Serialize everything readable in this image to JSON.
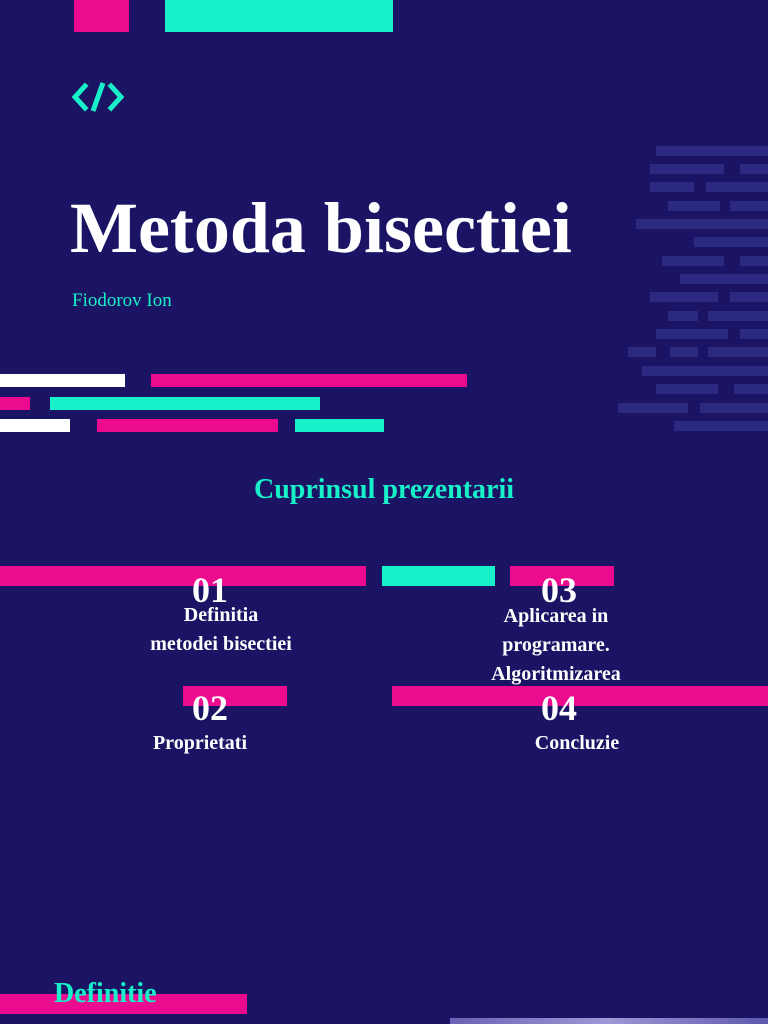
{
  "slide": {
    "title": "Metoda bisectiei",
    "author": "Fiodorov Ion"
  },
  "toc": {
    "heading": "Cuprinsul prezentarii",
    "items": [
      {
        "num": "01",
        "label_lines": [
          "Definitia",
          "metodei bisectiei"
        ]
      },
      {
        "num": "02",
        "label_lines": [
          "Proprietati"
        ]
      },
      {
        "num": "03",
        "label_lines": [
          "Aplicarea in",
          "programare.",
          "Algoritmizarea"
        ]
      },
      {
        "num": "04",
        "label_lines": [
          "Concluzie"
        ]
      }
    ]
  },
  "next_section": {
    "title": "Definitie"
  },
  "colors": {
    "background": "#1b1464",
    "pink": "#ec0b8e",
    "teal": "#17f0c8",
    "white": "#ffffff"
  },
  "icons": {
    "header": "code-brackets-icon"
  }
}
